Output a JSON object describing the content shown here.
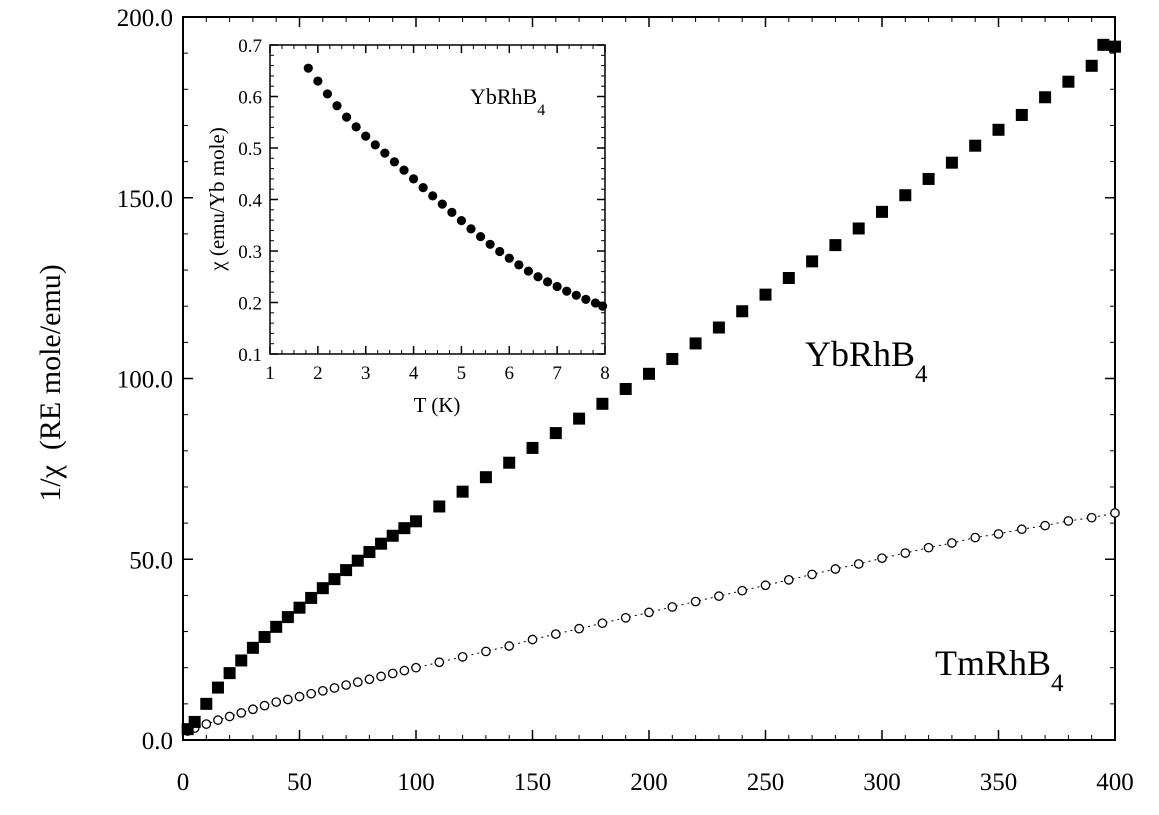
{
  "chart_data": [
    {
      "type": "scatter",
      "title": "",
      "xlabel": "",
      "ylabel": "1/χ  (RE mole/emu)",
      "xlim": [
        0,
        400
      ],
      "ylim": [
        0,
        200
      ],
      "x_ticks": [
        0,
        50,
        100,
        150,
        200,
        250,
        300,
        350,
        400
      ],
      "x_tick_labels": [
        "0",
        "50",
        "100",
        "150",
        "200",
        "250",
        "300",
        "350",
        "400"
      ],
      "y_ticks": [
        0,
        50,
        100,
        150,
        200
      ],
      "y_tick_labels": [
        "0.0",
        "50.0",
        "100.0",
        "150.0",
        "200.0"
      ],
      "grid": false,
      "annotations": [
        {
          "text": "YbRhB",
          "sub": "4",
          "series": "YbRhB4"
        },
        {
          "text": "TmRhB",
          "sub": "4",
          "series": "TmRhB4"
        }
      ],
      "series": [
        {
          "name": "YbRhB4",
          "marker": "filled-square",
          "color": "#000000",
          "x": [
            2,
            5,
            10,
            15,
            20,
            25,
            30,
            35,
            40,
            45,
            50,
            55,
            60,
            65,
            70,
            75,
            80,
            85,
            90,
            95,
            100,
            110,
            120,
            130,
            140,
            150,
            160,
            170,
            180,
            190,
            200,
            210,
            220,
            230,
            240,
            250,
            260,
            270,
            280,
            290,
            300,
            310,
            320,
            330,
            340,
            350,
            360,
            370,
            380,
            390,
            395,
            400
          ],
          "y": [
            3,
            5,
            10,
            14.5,
            18.5,
            22,
            25.5,
            28.5,
            31.3,
            34,
            36.6,
            39.3,
            42,
            44.5,
            47,
            49.6,
            52,
            54.3,
            56.5,
            58.6,
            60.5,
            64.6,
            68.7,
            72.7,
            76.7,
            80.8,
            84.9,
            88.9,
            93,
            97.1,
            101.3,
            105.4,
            109.7,
            114.1,
            118.6,
            123.2,
            127.8,
            132.4,
            136.9,
            141.5,
            146.1,
            150.7,
            155.2,
            159.7,
            164.4,
            168.8,
            172.9,
            177.8,
            182.1,
            186.5,
            192.3,
            191.8
          ]
        },
        {
          "name": "TmRhB4",
          "marker": "open-circle",
          "line": "dotted",
          "color": "#000000",
          "x": [
            2,
            5,
            10,
            15,
            20,
            25,
            30,
            35,
            40,
            45,
            50,
            55,
            60,
            65,
            70,
            75,
            80,
            85,
            90,
            95,
            100,
            110,
            120,
            130,
            140,
            150,
            160,
            170,
            180,
            190,
            200,
            210,
            220,
            230,
            240,
            250,
            260,
            270,
            280,
            290,
            300,
            310,
            320,
            330,
            340,
            350,
            360,
            370,
            380,
            390,
            400
          ],
          "y": [
            2.5,
            3.3,
            4.4,
            5.5,
            6.5,
            7.5,
            8.5,
            9.5,
            10.5,
            11.2,
            12,
            12.8,
            13.6,
            14.4,
            15.2,
            16,
            16.8,
            17.6,
            18.4,
            19.2,
            20,
            21.5,
            23,
            24.5,
            26,
            27.8,
            29.3,
            30.8,
            32.3,
            33.8,
            35.3,
            36.8,
            38.3,
            39.8,
            41.3,
            42.8,
            44.3,
            45.8,
            47.3,
            48.7,
            50.3,
            51.7,
            53.2,
            54.5,
            56,
            57,
            58.3,
            59.3,
            60.6,
            61.5,
            62.8
          ]
        }
      ]
    },
    {
      "type": "scatter",
      "title": "",
      "xlabel": "T (K)",
      "ylabel": "χ (emu/Yb mole)",
      "xlim": [
        1,
        8
      ],
      "ylim": [
        0.1,
        0.7
      ],
      "x_ticks": [
        1,
        2,
        3,
        4,
        5,
        6,
        7,
        8
      ],
      "x_tick_labels": [
        "1",
        "2",
        "3",
        "4",
        "5",
        "6",
        "7",
        "8"
      ],
      "y_ticks": [
        0.1,
        0.2,
        0.3,
        0.4,
        0.5,
        0.6,
        0.7
      ],
      "y_tick_labels": [
        "0.1",
        "0.2",
        "0.3",
        "0.4",
        "0.5",
        "0.6",
        "0.7"
      ],
      "grid": false,
      "annotations": [
        {
          "text": "YbRhB",
          "sub": "4",
          "series": "YbRhB4"
        }
      ],
      "series": [
        {
          "name": "YbRhB4",
          "marker": "filled-circle",
          "color": "#000000",
          "x": [
            1.8,
            2.0,
            2.2,
            2.4,
            2.6,
            2.8,
            3.0,
            3.2,
            3.4,
            3.6,
            3.8,
            4.0,
            4.2,
            4.4,
            4.6,
            4.8,
            5.0,
            5.2,
            5.4,
            5.6,
            5.8,
            6.0,
            6.2,
            6.4,
            6.6,
            6.8,
            7.0,
            7.2,
            7.4,
            7.6,
            7.8,
            7.95
          ],
          "y": [
            0.655,
            0.63,
            0.605,
            0.582,
            0.56,
            0.541,
            0.523,
            0.506,
            0.49,
            0.473,
            0.457,
            0.44,
            0.423,
            0.407,
            0.391,
            0.375,
            0.359,
            0.343,
            0.328,
            0.313,
            0.299,
            0.286,
            0.273,
            0.261,
            0.25,
            0.24,
            0.231,
            0.222,
            0.214,
            0.206,
            0.199,
            0.193
          ]
        }
      ]
    }
  ]
}
